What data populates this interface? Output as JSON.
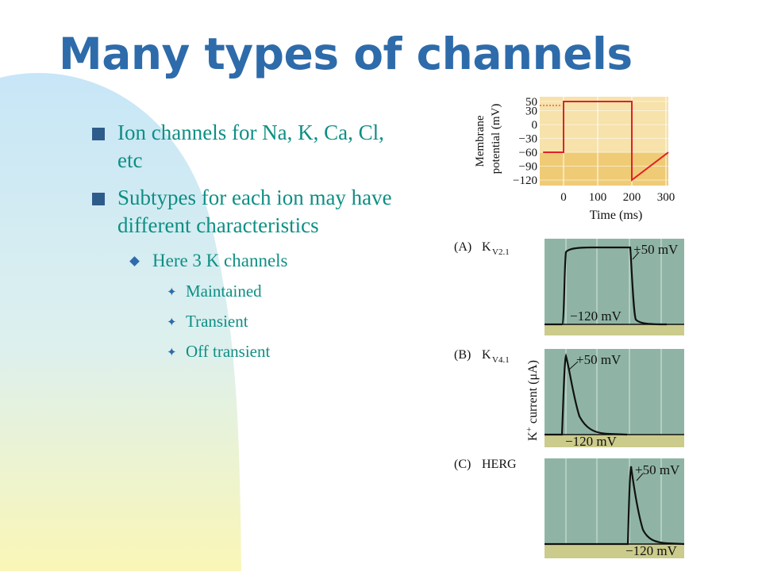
{
  "slide": {
    "title": "Many types of channels",
    "colors": {
      "title": "#2E6BAA",
      "text": "#0E8F84",
      "plot_bg": "#8FB4A6",
      "protocol_bg": "#F6E2AA",
      "protocol_band": "#EFCB75",
      "baseline_band": "#CBCB8C",
      "trace": "#111111",
      "voltage_step": "#E0202A"
    }
  },
  "bullets": {
    "b1": "Ion channels for Na, K, Ca, Cl, etc",
    "b2": "Subtypes for each ion may have different characteristics",
    "b2_1": "Here 3 K channels",
    "b2_1_1": "Maintained",
    "b2_1_2": "Transient",
    "b2_1_3": "Off transient"
  },
  "figure": {
    "protocol": {
      "ylabel_line1": "Membrane",
      "ylabel_line2": "potential (mV)",
      "xlabel": "Time (ms)",
      "yticks": [
        "50",
        "30",
        "0",
        "−30",
        "−60",
        "−90",
        "−120"
      ],
      "xticks": [
        "0",
        "100",
        "200",
        "300"
      ]
    },
    "panels": [
      {
        "label": "(A)",
        "channel": "K",
        "subscript": "V2.1",
        "upper": "+50 mV",
        "lower": "−120 mV"
      },
      {
        "label": "(B)",
        "channel": "K",
        "subscript": "V4.1",
        "upper": "+50 mV",
        "lower": "−120 mV"
      },
      {
        "label": "(C)",
        "channel": "HERG",
        "subscript": "",
        "upper": "+50 mV",
        "lower": "−120 mV"
      }
    ],
    "current_label_main": "K",
    "current_label_sup": "+",
    "current_label_rest": " current (μA)"
  },
  "chart_data": {
    "type": "line",
    "xlabel": "Time (ms)",
    "ylabel": "Membrane potential (mV)",
    "x": [
      -60,
      0,
      0,
      200,
      200,
      330
    ],
    "series": [
      {
        "values": [
          -60,
          -60,
          50,
          50,
          -120,
          -60
        ]
      }
    ],
    "ylim": [
      -120,
      50
    ],
    "xlim": [
      -60,
      330
    ],
    "yticks": [
      50,
      30,
      0,
      -30,
      -60,
      -90,
      -120
    ],
    "xticks": [
      0,
      100,
      200,
      300
    ],
    "grid": true
  }
}
